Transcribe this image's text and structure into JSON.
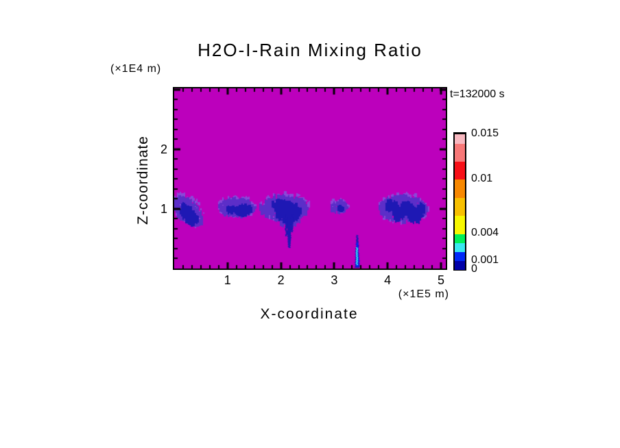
{
  "chart_data": {
    "type": "heatmap",
    "title": "H2O-I-Rain Mixing Ratio",
    "time_label": "t=132000 s",
    "x_axis": {
      "label": "X-coordinate",
      "units": "(×1E5 m)",
      "ticks": [
        1,
        2,
        3,
        4,
        5
      ],
      "range": [
        0,
        5.09
      ],
      "minor_divisions_per_unit": 6
    },
    "z_axis": {
      "label": "Z-coordinate",
      "units": "(×1E4 m)",
      "ticks": [
        1,
        2
      ],
      "range": [
        0,
        3.02
      ],
      "minor_divisions_per_unit": 6
    },
    "field": {
      "background_color": "#BC00BC",
      "palette": {
        "fringe": "#8A48D8",
        "purple": "#5C2EC8",
        "navy": "#1E18B4",
        "blue": "#0028F8",
        "cyan": "#38E8F0"
      },
      "patches": [
        {
          "color": "fringe",
          "cx": 0.25,
          "cz": 0.99,
          "rx": 0.3,
          "rz": 0.24,
          "n": 120,
          "shear": 0.4
        },
        {
          "color": "purple",
          "cx": 0.24,
          "cz": 0.96,
          "rx": 0.27,
          "rz": 0.2,
          "n": 340,
          "shear": 0.45
        },
        {
          "color": "navy",
          "cx": 0.26,
          "cz": 0.9,
          "rx": 0.16,
          "rz": 0.14,
          "n": 220,
          "shear": 0.55
        },
        {
          "color": "fringe",
          "cx": 1.16,
          "cz": 1.04,
          "rx": 0.36,
          "rz": 0.17,
          "n": 130,
          "shear": 0
        },
        {
          "color": "purple",
          "cx": 1.16,
          "cz": 1.02,
          "rx": 0.33,
          "rz": 0.14,
          "n": 380,
          "shear": 0
        },
        {
          "color": "navy",
          "cx": 1.28,
          "cz": 0.98,
          "rx": 0.16,
          "rz": 0.08,
          "n": 160,
          "shear": 0
        },
        {
          "color": "navy",
          "cx": 1.04,
          "cz": 0.99,
          "rx": 0.07,
          "rz": 0.05,
          "n": 40,
          "shear": 0
        },
        {
          "color": "fringe",
          "cx": 2.06,
          "cz": 1.04,
          "rx": 0.48,
          "rz": 0.23,
          "n": 180,
          "shear": 0
        },
        {
          "color": "purple",
          "cx": 2.04,
          "cz": 1.01,
          "rx": 0.45,
          "rz": 0.2,
          "n": 620,
          "shear": 0
        },
        {
          "color": "purple",
          "cx": 2.12,
          "cz": 0.88,
          "rx": 0.24,
          "rz": 0.17,
          "n": 210,
          "shear": 0
        },
        {
          "color": "navy",
          "cx": 2.12,
          "cz": 0.94,
          "rx": 0.23,
          "rz": 0.16,
          "n": 430,
          "shear": 0
        },
        {
          "color": "navy",
          "cx": 1.95,
          "cz": 1.06,
          "rx": 0.14,
          "rz": 0.09,
          "n": 90,
          "shear": 0
        },
        {
          "color": "fringe",
          "cx": 3.07,
          "cz": 1.05,
          "rx": 0.17,
          "rz": 0.11,
          "n": 40,
          "shear": 0
        },
        {
          "color": "purple",
          "cx": 3.07,
          "cz": 1.03,
          "rx": 0.15,
          "rz": 0.09,
          "n": 55,
          "shear": 0
        },
        {
          "color": "navy",
          "cx": 3.11,
          "cz": 1.01,
          "rx": 0.05,
          "rz": 0.04,
          "n": 14,
          "shear": 0
        },
        {
          "color": "fringe",
          "cx": 4.28,
          "cz": 1.01,
          "rx": 0.48,
          "rz": 0.25,
          "n": 200,
          "shear": 0
        },
        {
          "color": "purple",
          "cx": 4.28,
          "cz": 1.0,
          "rx": 0.45,
          "rz": 0.21,
          "n": 660,
          "shear": 0
        },
        {
          "color": "navy",
          "cx": 4.05,
          "cz": 1.04,
          "rx": 0.1,
          "rz": 0.1,
          "n": 90,
          "shear": 0
        },
        {
          "color": "navy",
          "cx": 4.18,
          "cz": 0.92,
          "rx": 0.11,
          "rz": 0.11,
          "n": 110,
          "shear": 0
        },
        {
          "color": "navy",
          "cx": 4.33,
          "cz": 1.02,
          "rx": 0.1,
          "rz": 0.09,
          "n": 90,
          "shear": 0
        },
        {
          "color": "navy",
          "cx": 4.5,
          "cz": 0.9,
          "rx": 0.13,
          "rz": 0.12,
          "n": 150,
          "shear": 0
        },
        {
          "color": "navy",
          "cx": 4.62,
          "cz": 1.0,
          "rx": 0.07,
          "rz": 0.07,
          "n": 50,
          "shear": 0
        }
      ],
      "streaks": [
        {
          "color": "navy",
          "x": 2.155,
          "z0": 0.35,
          "z1": 0.92,
          "w0": 1.5,
          "w1": 5.0
        },
        {
          "color": "navy",
          "x": 2.1,
          "z0": 0.55,
          "z1": 0.86,
          "w0": 1.0,
          "w1": 2.0
        },
        {
          "color": "navy",
          "x": 2.21,
          "z0": 0.62,
          "z1": 0.86,
          "w0": 1.0,
          "w1": 2.0
        },
        {
          "color": "navy",
          "x": 3.43,
          "z0": 0.02,
          "z1": 0.56,
          "w0": 3.5,
          "w1": 1.2
        },
        {
          "color": "blue",
          "x": 3.43,
          "z0": 0.04,
          "z1": 0.44,
          "w0": 2.2,
          "w1": 1.0
        },
        {
          "color": "cyan",
          "x": 3.425,
          "z0": 0.06,
          "z1": 0.36,
          "w0": 1.1,
          "w1": 1.1
        }
      ]
    },
    "colorbar": {
      "max": 0.015,
      "levels": [
        0,
        0.001,
        0.002,
        0.003,
        0.004,
        0.006,
        0.008,
        0.01,
        0.012,
        0.014,
        0.015
      ],
      "colors_bottom_to_top": [
        "#0000A8",
        "#0028F8",
        "#38E8F0",
        "#00F058",
        "#F8F800",
        "#F8C000",
        "#F88800",
        "#F81018",
        "#F87878",
        "#F8B8C0"
      ],
      "labels": [
        {
          "text": "0.015",
          "value": 0.015
        },
        {
          "text": "0.01",
          "value": 0.01
        },
        {
          "text": "0.004",
          "value": 0.004
        },
        {
          "text": "0.001",
          "value": 0.001
        },
        {
          "text": "0",
          "value": 0
        }
      ]
    }
  }
}
